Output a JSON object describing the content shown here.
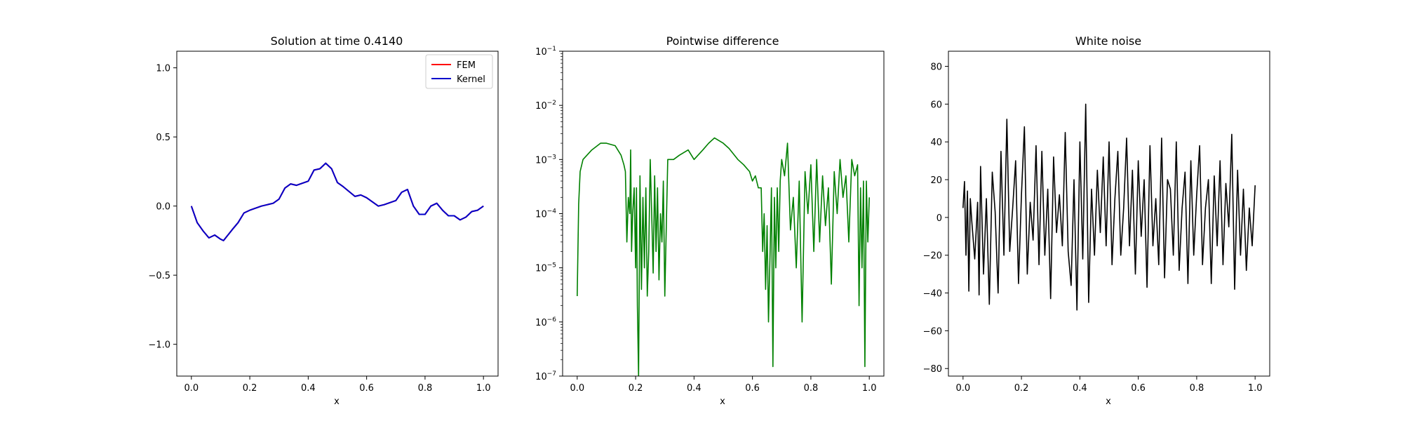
{
  "chart_data": [
    {
      "type": "line",
      "title": "Solution at time 0.4140",
      "xlabel": "x",
      "ylabel": "",
      "xlim": [
        -0.05,
        1.05
      ],
      "ylim": [
        -1.23,
        1.12
      ],
      "xticks": [
        0.0,
        0.2,
        0.4,
        0.6,
        0.8,
        1.0
      ],
      "xtick_labels": [
        "0.0",
        "0.2",
        "0.4",
        "0.6",
        "0.8",
        "1.0"
      ],
      "yticks": [
        -1.0,
        -0.5,
        0.0,
        0.5,
        1.0
      ],
      "ytick_labels": [
        "−1.0",
        "−0.5",
        "0.0",
        "0.5",
        "1.0"
      ],
      "legend_position": "top-right",
      "grid": false,
      "series": [
        {
          "name": "FEM",
          "color": "#ff0000",
          "x": [
            0.0,
            0.02,
            0.04,
            0.06,
            0.08,
            0.1,
            0.11,
            0.14,
            0.16,
            0.18,
            0.2,
            0.24,
            0.28,
            0.3,
            0.32,
            0.34,
            0.36,
            0.4,
            0.42,
            0.44,
            0.46,
            0.48,
            0.5,
            0.52,
            0.56,
            0.58,
            0.6,
            0.64,
            0.66,
            0.7,
            0.72,
            0.74,
            0.76,
            0.78,
            0.8,
            0.82,
            0.84,
            0.86,
            0.88,
            0.9,
            0.92,
            0.94,
            0.96,
            0.98,
            1.0
          ],
          "y": [
            0.0,
            -0.12,
            -0.18,
            -0.23,
            -0.21,
            -0.24,
            -0.25,
            -0.17,
            -0.12,
            -0.05,
            -0.03,
            0.0,
            0.02,
            0.05,
            0.13,
            0.16,
            0.15,
            0.18,
            0.26,
            0.27,
            0.31,
            0.27,
            0.17,
            0.14,
            0.07,
            0.08,
            0.06,
            0.0,
            0.01,
            0.04,
            0.1,
            0.12,
            0.0,
            -0.06,
            -0.06,
            0.0,
            0.02,
            -0.03,
            -0.07,
            -0.07,
            -0.1,
            -0.08,
            -0.04,
            -0.03,
            0.0
          ]
        },
        {
          "name": "Kernel",
          "color": "#0000cc",
          "x": [
            0.0,
            0.02,
            0.04,
            0.06,
            0.08,
            0.1,
            0.11,
            0.14,
            0.16,
            0.18,
            0.2,
            0.24,
            0.28,
            0.3,
            0.32,
            0.34,
            0.36,
            0.4,
            0.42,
            0.44,
            0.46,
            0.48,
            0.5,
            0.52,
            0.56,
            0.58,
            0.6,
            0.64,
            0.66,
            0.7,
            0.72,
            0.74,
            0.76,
            0.78,
            0.8,
            0.82,
            0.84,
            0.86,
            0.88,
            0.9,
            0.92,
            0.94,
            0.96,
            0.98,
            1.0
          ],
          "y": [
            0.0,
            -0.12,
            -0.18,
            -0.23,
            -0.21,
            -0.24,
            -0.25,
            -0.17,
            -0.12,
            -0.05,
            -0.03,
            0.0,
            0.02,
            0.05,
            0.13,
            0.16,
            0.15,
            0.18,
            0.26,
            0.27,
            0.31,
            0.27,
            0.17,
            0.14,
            0.07,
            0.08,
            0.06,
            0.0,
            0.01,
            0.04,
            0.1,
            0.12,
            0.0,
            -0.06,
            -0.06,
            0.0,
            0.02,
            -0.03,
            -0.07,
            -0.07,
            -0.1,
            -0.08,
            -0.04,
            -0.03,
            0.0
          ]
        }
      ]
    },
    {
      "type": "line",
      "title": "Pointwise difference",
      "xlabel": "x",
      "ylabel": "",
      "yscale": "log",
      "xlim": [
        -0.05,
        1.05
      ],
      "ylim": [
        1e-07,
        0.1
      ],
      "xticks": [
        0.0,
        0.2,
        0.4,
        0.6,
        0.8,
        1.0
      ],
      "xtick_labels": [
        "0.0",
        "0.2",
        "0.4",
        "0.6",
        "0.8",
        "1.0"
      ],
      "yticks": [
        1e-07,
        1e-06,
        1e-05,
        0.0001,
        0.001,
        0.01,
        0.1
      ],
      "ytick_labels": [
        "10−7",
        "10−6",
        "10−5",
        "10−4",
        "10−3",
        "10−2",
        "10−1"
      ],
      "grid": false,
      "series": [
        {
          "color": "#008000",
          "x": [
            0.0,
            0.005,
            0.01,
            0.02,
            0.05,
            0.08,
            0.1,
            0.13,
            0.15,
            0.16,
            0.165,
            0.17,
            0.175,
            0.18,
            0.183,
            0.186,
            0.19,
            0.195,
            0.2,
            0.203,
            0.206,
            0.21,
            0.215,
            0.22,
            0.225,
            0.23,
            0.235,
            0.24,
            0.245,
            0.25,
            0.255,
            0.26,
            0.265,
            0.27,
            0.275,
            0.28,
            0.285,
            0.29,
            0.295,
            0.3,
            0.31,
            0.33,
            0.35,
            0.38,
            0.4,
            0.43,
            0.45,
            0.47,
            0.5,
            0.52,
            0.55,
            0.57,
            0.59,
            0.6,
            0.61,
            0.62,
            0.63,
            0.635,
            0.64,
            0.645,
            0.65,
            0.655,
            0.66,
            0.665,
            0.67,
            0.675,
            0.68,
            0.685,
            0.69,
            0.695,
            0.7,
            0.71,
            0.72,
            0.73,
            0.74,
            0.75,
            0.76,
            0.77,
            0.78,
            0.79,
            0.8,
            0.81,
            0.82,
            0.83,
            0.84,
            0.85,
            0.86,
            0.87,
            0.88,
            0.89,
            0.9,
            0.91,
            0.92,
            0.93,
            0.94,
            0.95,
            0.96,
            0.965,
            0.97,
            0.975,
            0.98,
            0.985,
            0.99,
            0.995,
            1.0
          ],
          "y": [
            3e-06,
            0.00015,
            0.0006,
            0.001,
            0.0015,
            0.002,
            0.002,
            0.0018,
            0.0012,
            0.0008,
            0.0006,
            3e-05,
            0.0002,
            0.0001,
            0.0015,
            2e-05,
            0.0001,
            0.0003,
            1e-05,
            0.0003,
            2e-06,
            1e-07,
            0.0005,
            4e-06,
            0.0002,
            1e-05,
            0.0003,
            3e-06,
            2e-05,
            0.001,
            0.0001,
            8e-06,
            0.0005,
            2e-05,
            0.0003,
            6e-06,
            0.0001,
            3e-05,
            0.0004,
            3e-06,
            0.001,
            0.001,
            0.0012,
            0.0015,
            0.001,
            0.0015,
            0.002,
            0.0025,
            0.002,
            0.0016,
            0.001,
            0.0008,
            0.0006,
            0.0004,
            0.0005,
            0.0003,
            0.0003,
            2e-05,
            0.0001,
            4e-06,
            6e-05,
            1e-06,
            1.5e-05,
            0.0003,
            1.5e-07,
            0.0002,
            1e-05,
            0.0003,
            2e-05,
            0.0004,
            0.001,
            0.0005,
            0.002,
            5e-05,
            0.0002,
            1e-05,
            0.0004,
            1e-06,
            0.0006,
            0.0001,
            0.0008,
            2e-05,
            0.001,
            3e-05,
            0.0005,
            6e-05,
            0.0003,
            5e-06,
            0.0006,
            0.0001,
            0.001,
            0.0002,
            0.0005,
            3e-05,
            0.001,
            0.0005,
            0.0008,
            2e-06,
            0.0003,
            1e-05,
            0.0004,
            1.5e-07,
            0.0004,
            3e-05,
            0.0002
          ]
        }
      ]
    },
    {
      "type": "line",
      "title": "White noise",
      "xlabel": "x",
      "ylabel": "",
      "xlim": [
        -0.05,
        1.05
      ],
      "ylim": [
        -84,
        88
      ],
      "xticks": [
        0.0,
        0.2,
        0.4,
        0.6,
        0.8,
        1.0
      ],
      "xtick_labels": [
        "0.0",
        "0.2",
        "0.4",
        "0.6",
        "0.8",
        "1.0"
      ],
      "yticks": [
        -80,
        -60,
        -40,
        -20,
        0,
        20,
        40,
        60,
        80
      ],
      "ytick_labels": [
        "−80",
        "−60",
        "−40",
        "−20",
        "0",
        "20",
        "40",
        "60",
        "80"
      ],
      "grid": false,
      "series": [
        {
          "color": "#000000",
          "x": [
            0.0,
            0.005,
            0.01,
            0.015,
            0.02,
            0.025,
            0.03,
            0.04,
            0.05,
            0.055,
            0.06,
            0.07,
            0.08,
            0.09,
            0.1,
            0.11,
            0.12,
            0.13,
            0.14,
            0.15,
            0.16,
            0.17,
            0.18,
            0.19,
            0.2,
            0.21,
            0.22,
            0.23,
            0.24,
            0.25,
            0.26,
            0.27,
            0.28,
            0.29,
            0.3,
            0.31,
            0.32,
            0.33,
            0.34,
            0.35,
            0.36,
            0.37,
            0.38,
            0.39,
            0.4,
            0.41,
            0.42,
            0.43,
            0.44,
            0.45,
            0.46,
            0.47,
            0.48,
            0.49,
            0.5,
            0.51,
            0.52,
            0.53,
            0.54,
            0.55,
            0.56,
            0.57,
            0.58,
            0.59,
            0.6,
            0.61,
            0.62,
            0.63,
            0.64,
            0.65,
            0.66,
            0.67,
            0.68,
            0.69,
            0.7,
            0.71,
            0.72,
            0.73,
            0.74,
            0.75,
            0.76,
            0.77,
            0.78,
            0.79,
            0.8,
            0.81,
            0.82,
            0.83,
            0.84,
            0.85,
            0.86,
            0.87,
            0.88,
            0.89,
            0.9,
            0.91,
            0.92,
            0.93,
            0.94,
            0.95,
            0.96,
            0.97,
            0.98,
            0.99,
            1.0
          ],
          "y": [
            5,
            19,
            -20,
            14,
            -39,
            10,
            -2,
            -22,
            8,
            -41,
            27,
            -30,
            10,
            -46,
            24,
            3,
            -40,
            35,
            -20,
            52,
            -18,
            5,
            30,
            -35,
            12,
            48,
            -30,
            8,
            -12,
            38,
            -25,
            35,
            -20,
            15,
            -43,
            32,
            -8,
            12,
            -15,
            45,
            -18,
            -36,
            20,
            -49,
            40,
            -22,
            60,
            -45,
            15,
            -20,
            25,
            -8,
            32,
            -15,
            40,
            -25,
            10,
            35,
            -20,
            5,
            42,
            -15,
            25,
            -30,
            30,
            -10,
            20,
            -37,
            38,
            -15,
            10,
            -25,
            42,
            -32,
            20,
            15,
            -20,
            40,
            -28,
            5,
            24,
            -35,
            30,
            -20,
            12,
            38,
            -25,
            5,
            20,
            -35,
            22,
            -15,
            30,
            -25,
            18,
            -5,
            44,
            -38,
            25,
            -20,
            15,
            -28,
            5,
            -15,
            17
          ]
        }
      ]
    }
  ]
}
